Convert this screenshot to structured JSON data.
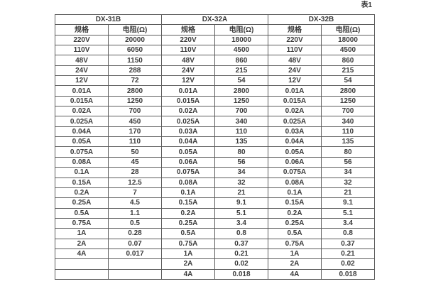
{
  "page": {
    "table_label": "表1",
    "background_color": "#ffffff",
    "border_color": "#5c5c5c",
    "text_color": "#3b3b3b"
  },
  "chart_data": {
    "type": "table",
    "title": "表1",
    "layout": {
      "column_groups": 3,
      "columns_per_group": 2,
      "data_rows": 24,
      "grid": true
    },
    "groups": [
      {
        "name": "DX-31B",
        "col_headers": [
          "规格",
          "电阻(Ω)"
        ],
        "rows": [
          [
            "220V",
            "20000"
          ],
          [
            "110V",
            "6050"
          ],
          [
            "48V",
            "1150"
          ],
          [
            "24V",
            "288"
          ],
          [
            "12V",
            "72"
          ],
          [
            "0.01A",
            "2800"
          ],
          [
            "0.015A",
            "1250"
          ],
          [
            "0.02A",
            "700"
          ],
          [
            "0.025A",
            "450"
          ],
          [
            "0.04A",
            "170"
          ],
          [
            "0.05A",
            "110"
          ],
          [
            "0.075A",
            "50"
          ],
          [
            "0.08A",
            "45"
          ],
          [
            "0.1A",
            "28"
          ],
          [
            "0.15A",
            "12.5"
          ],
          [
            "0.2A",
            "7"
          ],
          [
            "0.25A",
            "4.5"
          ],
          [
            "0.5A",
            "1.1"
          ],
          [
            "0.75A",
            "0.5"
          ],
          [
            "1A",
            "0.28"
          ],
          [
            "2A",
            "0.07"
          ],
          [
            "4A",
            "0.017"
          ],
          [
            "",
            ""
          ],
          [
            "",
            ""
          ]
        ]
      },
      {
        "name": "DX-32A",
        "col_headers": [
          "规格",
          "电阻(Ω)"
        ],
        "rows": [
          [
            "220V",
            "18000"
          ],
          [
            "110V",
            "4500"
          ],
          [
            "48V",
            "860"
          ],
          [
            "24V",
            "215"
          ],
          [
            "12V",
            "54"
          ],
          [
            "0.01A",
            "2800"
          ],
          [
            "0.015A",
            "1250"
          ],
          [
            "0.02A",
            "700"
          ],
          [
            "0.025A",
            "340"
          ],
          [
            "0.03A",
            "110"
          ],
          [
            "0.04A",
            "135"
          ],
          [
            "0.05A",
            "80"
          ],
          [
            "0.06A",
            "56"
          ],
          [
            "0.075A",
            "34"
          ],
          [
            "0.08A",
            "32"
          ],
          [
            "0.1A",
            "21"
          ],
          [
            "0.15A",
            "9.1"
          ],
          [
            "0.2A",
            "5.1"
          ],
          [
            "0.25A",
            "3.4"
          ],
          [
            "0.5A",
            "0.8"
          ],
          [
            "0.75A",
            "0.37"
          ],
          [
            "1A",
            "0.21"
          ],
          [
            "2A",
            "0.02"
          ],
          [
            "4A",
            "0.018"
          ]
        ]
      },
      {
        "name": "DX-32B",
        "col_headers": [
          "规格",
          "电阻(Ω)"
        ],
        "rows": [
          [
            "220V",
            "18000"
          ],
          [
            "110V",
            "4500"
          ],
          [
            "48V",
            "860"
          ],
          [
            "24V",
            "215"
          ],
          [
            "12V",
            "54"
          ],
          [
            "0.01A",
            "2800"
          ],
          [
            "0.015A",
            "1250"
          ],
          [
            "0.02A",
            "700"
          ],
          [
            "0.025A",
            "340"
          ],
          [
            "0.03A",
            "110"
          ],
          [
            "0.04A",
            "135"
          ],
          [
            "0.05A",
            "80"
          ],
          [
            "0.06A",
            "56"
          ],
          [
            "0.075A",
            "34"
          ],
          [
            "0.08A",
            "32"
          ],
          [
            "0.1A",
            "21"
          ],
          [
            "0.15A",
            "9.1"
          ],
          [
            "0.2A",
            "5.1"
          ],
          [
            "0.25A",
            "3.4"
          ],
          [
            "0.5A",
            "0.8"
          ],
          [
            "0.75A",
            "0.37"
          ],
          [
            "1A",
            "0.21"
          ],
          [
            "2A",
            "0.02"
          ],
          [
            "4A",
            "0.018"
          ]
        ]
      }
    ]
  }
}
